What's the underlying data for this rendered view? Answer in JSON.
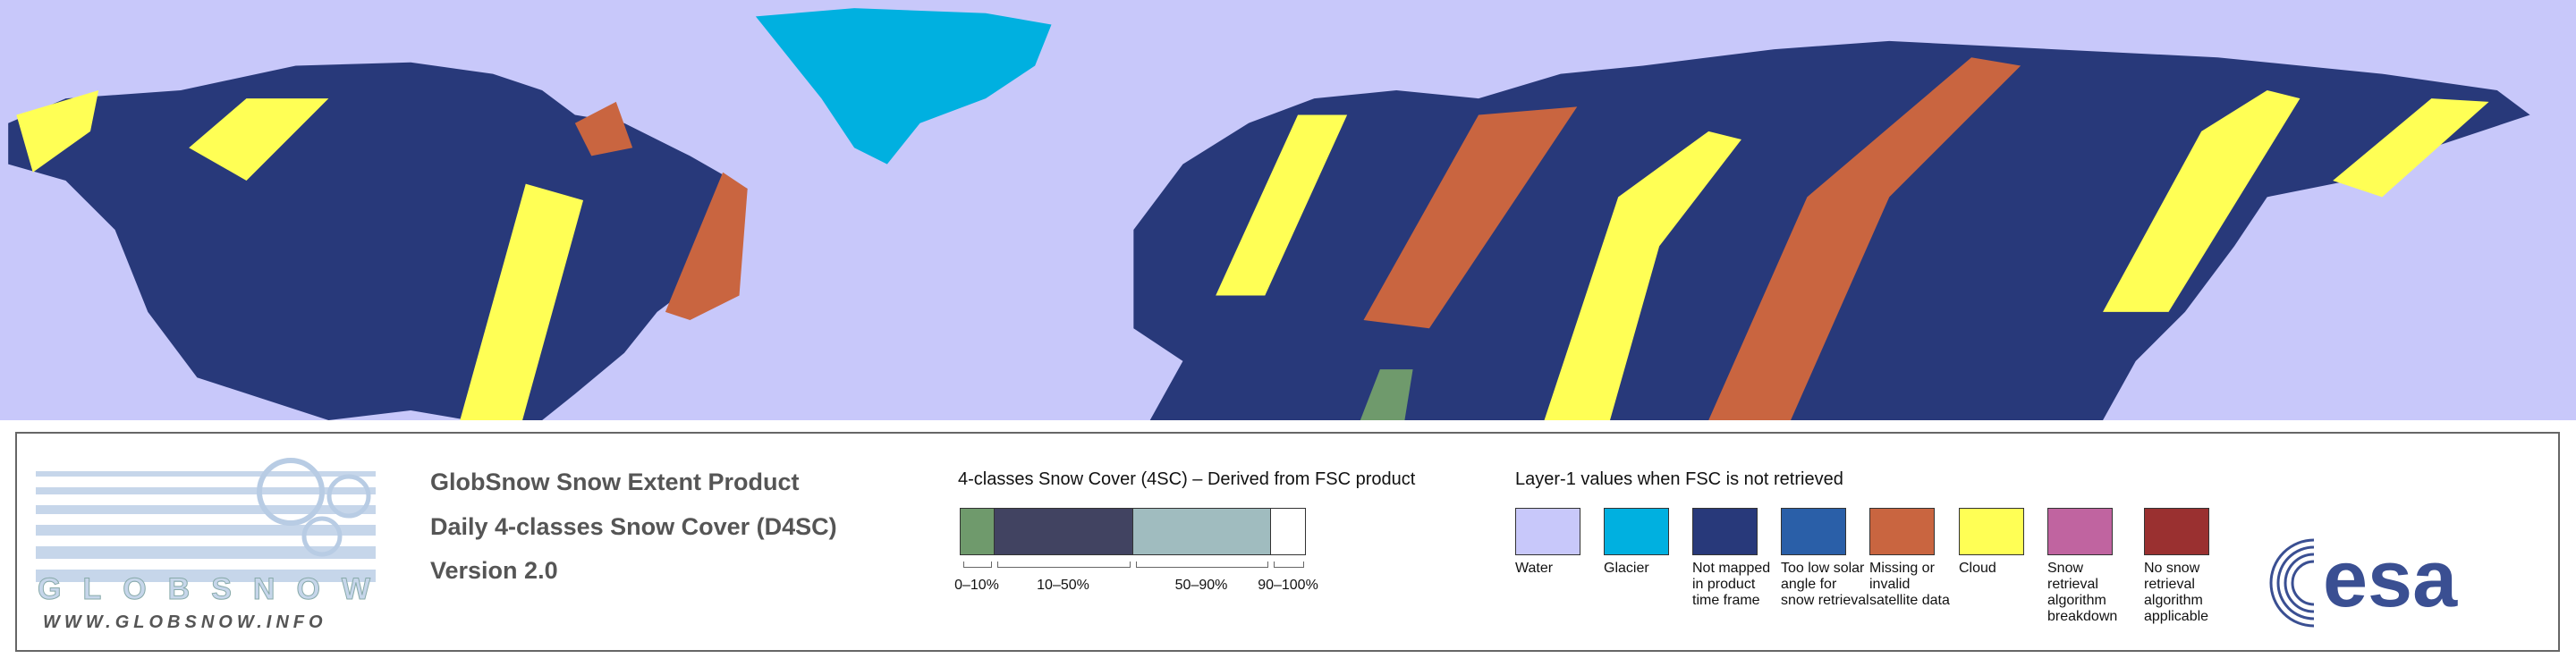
{
  "logo": {
    "name": "GLOBSNOW",
    "url": "WWW.GLOBSNOW.INFO"
  },
  "product": {
    "title": "GlobSnow Snow Extent Product",
    "subtitle": "Daily 4-classes Snow Cover (D4SC)",
    "version": "Version 2.0"
  },
  "snow_cover_legend": {
    "title": "4-classes Snow Cover (4SC) – Derived from FSC product",
    "classes": [
      {
        "label": "0–10%",
        "color": "#6f9a6c"
      },
      {
        "label": "10–50%",
        "color": "#414361"
      },
      {
        "label": "50–90%",
        "color": "#a0bcbf"
      },
      {
        "label": "90–100%",
        "color": "#ffffff"
      }
    ]
  },
  "layer1_legend": {
    "title": "Layer-1 values when FSC is not retrieved",
    "items": [
      {
        "label": "Water",
        "color": "#c8c8fa"
      },
      {
        "label": "Glacier",
        "color": "#00b0e0"
      },
      {
        "label": "Not mapped in product time frame",
        "color": "#28397a"
      },
      {
        "label": "Too low solar angle for snow retrieval",
        "color": "#2a5fa8"
      },
      {
        "label": "Missing or invalid satellite data",
        "color": "#c96540"
      },
      {
        "label": "Cloud",
        "color": "#ffff55"
      },
      {
        "label": "Snow retrieval algorithm breakdown",
        "color": "#c064a0"
      },
      {
        "label": "No snow retrieval algorithm applicable",
        "color": "#9a3030"
      }
    ]
  },
  "agency": "esa"
}
